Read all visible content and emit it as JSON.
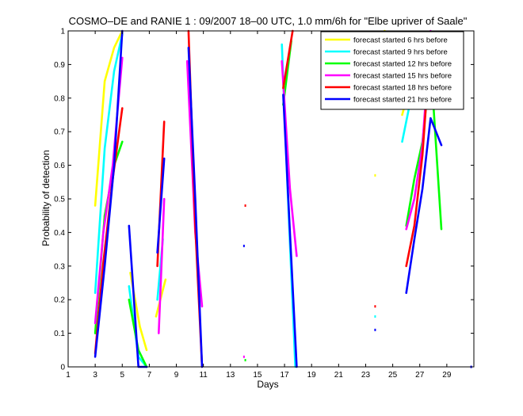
{
  "chart_data": {
    "type": "line",
    "title": "COSMO–DE and RANIE 1 : 09/2007 18–00 UTC, 1.0 mm/6h for \"Elbe upriver of Saale\"",
    "xlabel": "Days",
    "ylabel": "Probability of detection",
    "xlim": [
      1,
      31
    ],
    "ylim": [
      0,
      1
    ],
    "xticks": [
      "1",
      "3",
      "5",
      "7",
      "9",
      "11",
      "13",
      "15",
      "17",
      "19",
      "21",
      "23",
      "25",
      "27",
      "29"
    ],
    "yticks": [
      "0",
      "0.1",
      "0.2",
      "0.3",
      "0.4",
      "0.5",
      "0.6",
      "0.7",
      "0.8",
      "0.9",
      "1"
    ],
    "legend_position": "top-right",
    "grid": false,
    "series": [
      {
        "name": "forecast started  6 hrs before",
        "color": "#ffff00",
        "segments": [
          [
            [
              3,
              0.48
            ],
            [
              3.7,
              0.85
            ],
            [
              4.4,
              0.95
            ],
            [
              5,
              1.0
            ]
          ],
          [
            [
              5.6,
              0.28
            ],
            [
              6.3,
              0.12
            ],
            [
              6.8,
              0.05
            ]
          ],
          [
            [
              7.5,
              0.15
            ],
            [
              8.2,
              0.26
            ]
          ],
          [
            [
              24.4,
              1.0
            ],
            [
              25.0,
              0.82
            ]
          ],
          [
            [
              25.7,
              0.75
            ],
            [
              26.3,
              0.84
            ],
            [
              27.0,
              0.9
            ],
            [
              27.7,
              0.93
            ],
            [
              28.3,
              0.92
            ]
          ]
        ],
        "points": [
          [
            23.7,
            0.57
          ]
        ]
      },
      {
        "name": "forecast started  9 hrs before",
        "color": "#00ffff",
        "segments": [
          [
            [
              3,
              0.22
            ],
            [
              3.7,
              0.65
            ],
            [
              4.4,
              0.88
            ],
            [
              5,
              0.99
            ]
          ],
          [
            [
              5.5,
              0.24
            ],
            [
              6.2,
              0.03
            ],
            [
              6.8,
              0.0
            ]
          ],
          [
            [
              7.6,
              0.2
            ],
            [
              8.0,
              0.38
            ]
          ],
          [
            [
              16.8,
              0.96
            ],
            [
              17.2,
              0.55
            ],
            [
              17.8,
              0.0
            ]
          ],
          [
            [
              25.7,
              0.67
            ],
            [
              26.3,
              0.79
            ],
            [
              27.0,
              0.87
            ],
            [
              27.7,
              0.88
            ],
            [
              28.3,
              0.93
            ]
          ]
        ],
        "points": [
          [
            23.7,
            0.15
          ]
        ]
      },
      {
        "name": "forecast started 12 hrs before",
        "color": "#00ff00",
        "segments": [
          [
            [
              3,
              0.1
            ],
            [
              3.7,
              0.45
            ],
            [
              4.4,
              0.6
            ],
            [
              5,
              0.67
            ]
          ],
          [
            [
              5.5,
              0.2
            ],
            [
              6.2,
              0.05
            ],
            [
              6.8,
              0.0
            ]
          ],
          [
            [
              16.9,
              0.78
            ],
            [
              17.5,
              0.97
            ]
          ],
          [
            [
              26.0,
              0.42
            ],
            [
              26.6,
              0.56
            ],
            [
              27.2,
              0.67
            ],
            [
              27.8,
              0.91
            ],
            [
              28.6,
              0.41
            ]
          ]
        ],
        "points": [
          [
            14.1,
            0.02
          ]
        ]
      },
      {
        "name": "forecast started 15 hrs before",
        "color": "#ff00ff",
        "segments": [
          [
            [
              3,
              0.13
            ],
            [
              3.6,
              0.4
            ],
            [
              4.3,
              0.6
            ],
            [
              5,
              0.92
            ]
          ],
          [
            [
              7.7,
              0.1
            ],
            [
              8.1,
              0.5
            ]
          ],
          [
            [
              9.8,
              0.91
            ],
            [
              10.4,
              0.4
            ],
            [
              10.9,
              0.18
            ]
          ],
          [
            [
              16.8,
              0.91
            ],
            [
              17.4,
              0.53
            ],
            [
              17.9,
              0.33
            ]
          ],
          [
            [
              26.0,
              0.41
            ],
            [
              26.6,
              0.5
            ],
            [
              27.2,
              0.66
            ],
            [
              27.8,
              1.0
            ],
            [
              28.6,
              0.91
            ]
          ]
        ],
        "points": [
          [
            14.0,
            0.03
          ]
        ]
      },
      {
        "name": "forecast started 18 hrs before",
        "color": "#ff0000",
        "segments": [
          [
            [
              3,
              0.04
            ],
            [
              3.6,
              0.31
            ],
            [
              4.3,
              0.56
            ],
            [
              5,
              0.77
            ]
          ],
          [
            [
              7.6,
              0.3
            ],
            [
              8.1,
              0.73
            ]
          ],
          [
            [
              9.9,
              1.0
            ],
            [
              10.4,
              0.42
            ],
            [
              10.9,
              0.0
            ]
          ],
          [
            [
              16.9,
              0.83
            ],
            [
              17.6,
              1.0
            ]
          ],
          [
            [
              26.0,
              0.3
            ],
            [
              26.6,
              0.42
            ],
            [
              27.2,
              0.63
            ],
            [
              27.8,
              0.97
            ],
            [
              28.6,
              0.88
            ]
          ]
        ],
        "points": [
          [
            14.1,
            0.48
          ],
          [
            23.7,
            0.18
          ]
        ]
      },
      {
        "name": "forecast started 21 hrs before",
        "color": "#0000ff",
        "segments": [
          [
            [
              3,
              0.03
            ],
            [
              3.7,
              0.3
            ],
            [
              4.4,
              0.6
            ],
            [
              5,
              1.0
            ]
          ],
          [
            [
              5.5,
              0.42
            ],
            [
              6.2,
              0.0
            ],
            [
              6.8,
              0.0
            ]
          ],
          [
            [
              7.6,
              0.34
            ],
            [
              8.1,
              0.62
            ]
          ],
          [
            [
              9.9,
              0.95
            ],
            [
              10.4,
              0.5
            ],
            [
              10.9,
              0.0
            ]
          ],
          [
            [
              16.9,
              0.81
            ],
            [
              17.4,
              0.4
            ],
            [
              17.9,
              0.0
            ]
          ],
          [
            [
              26.0,
              0.22
            ],
            [
              26.6,
              0.38
            ],
            [
              27.2,
              0.53
            ],
            [
              27.8,
              0.74
            ],
            [
              28.6,
              0.66
            ]
          ]
        ],
        "points": [
          [
            14.0,
            0.36
          ],
          [
            23.7,
            0.11
          ],
          [
            30.8,
            0.0
          ]
        ]
      }
    ]
  }
}
